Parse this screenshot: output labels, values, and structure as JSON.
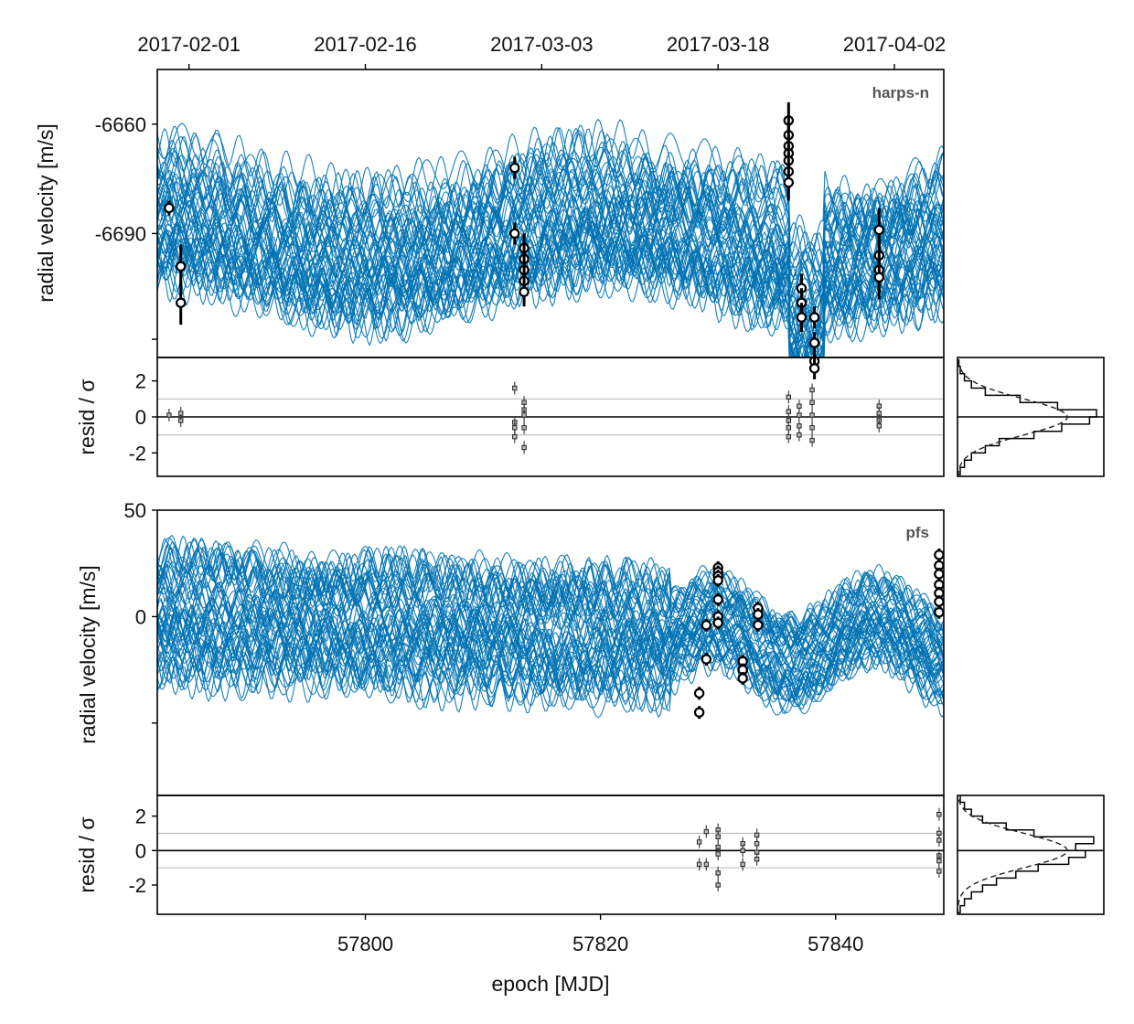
{
  "chart_data": {
    "type": "scatter",
    "colors": {
      "model": "#0072B2",
      "point_fill": "#ffffff",
      "point_edge": "#000000",
      "grid": "#bbbbbb",
      "instrument_label": "#555555"
    },
    "x_axis": {
      "label": "epoch [MJD]",
      "range": [
        57782.3,
        57849.2
      ],
      "ticks": [
        57800,
        57820,
        57840
      ],
      "tick_labels": [
        "57800",
        "57820",
        "57840"
      ]
    },
    "top_date_axis": {
      "range": [
        "2017-01-24",
        "2017-04-02"
      ],
      "tick_labels": [
        "2017-02-01",
        "2017-02-16",
        "2017-03-03",
        "2017-03-18",
        "2017-04-02"
      ],
      "tick_mjd": [
        57785,
        57800,
        57815,
        57830,
        57845
      ]
    },
    "panels": [
      {
        "instrument": "harps-n",
        "ylabel": "radial velocity [m/s]",
        "ylim": [
          -6724,
          -6645
        ],
        "yticks": [
          -6660,
          -6690,
          -6719
        ],
        "ytick_labels": [
          "-6660",
          "-6690",
          ""
        ],
        "points": [
          {
            "x": 57783.3,
            "y": -6683,
            "err": 2
          },
          {
            "x": 57784.3,
            "y": -6699,
            "err": 6
          },
          {
            "x": 57784.3,
            "y": -6709,
            "err": 6
          },
          {
            "x": 57812.7,
            "y": -6672,
            "err": 3
          },
          {
            "x": 57812.7,
            "y": -6690,
            "err": 3
          },
          {
            "x": 57813.5,
            "y": -6694,
            "err": 4
          },
          {
            "x": 57813.5,
            "y": -6697,
            "err": 4
          },
          {
            "x": 57813.5,
            "y": -6700,
            "err": 4
          },
          {
            "x": 57813.5,
            "y": -6703,
            "err": 4
          },
          {
            "x": 57813.5,
            "y": -6706,
            "err": 4
          },
          {
            "x": 57836.0,
            "y": -6659,
            "err": 5
          },
          {
            "x": 57836.0,
            "y": -6663,
            "err": 5
          },
          {
            "x": 57836.0,
            "y": -6666,
            "err": 5
          },
          {
            "x": 57836.0,
            "y": -6668,
            "err": 5
          },
          {
            "x": 57836.0,
            "y": -6670,
            "err": 5
          },
          {
            "x": 57836.0,
            "y": -6673,
            "err": 5
          },
          {
            "x": 57836.0,
            "y": -6676,
            "err": 5
          },
          {
            "x": 57837.1,
            "y": -6705,
            "err": 4
          },
          {
            "x": 57837.1,
            "y": -6709,
            "err": 4
          },
          {
            "x": 57837.1,
            "y": -6713,
            "err": 4
          },
          {
            "x": 57838.2,
            "y": -6713,
            "err": 3
          },
          {
            "x": 57838.2,
            "y": -6720,
            "err": 3
          },
          {
            "x": 57838.2,
            "y": -6725,
            "err": 3
          },
          {
            "x": 57838.2,
            "y": -6727,
            "err": 3
          },
          {
            "x": 57843.7,
            "y": -6689,
            "err": 6
          },
          {
            "x": 57843.7,
            "y": -6696,
            "err": 6
          },
          {
            "x": 57843.7,
            "y": -6700,
            "err": 6
          },
          {
            "x": 57843.7,
            "y": -6702,
            "err": 6
          }
        ],
        "residuals": {
          "ylabel": "resid / σ",
          "ylim": [
            -3.3,
            3.3
          ],
          "yticks": [
            2,
            0,
            -2
          ],
          "ytick_labels": [
            "2",
            "0",
            "-2"
          ],
          "hlines": [
            1,
            0,
            -1
          ],
          "points": [
            {
              "x": 57783.3,
              "y": 0.1
            },
            {
              "x": 57784.3,
              "y": -0.2
            },
            {
              "x": 57784.3,
              "y": 0.2
            },
            {
              "x": 57812.7,
              "y": 1.6
            },
            {
              "x": 57812.7,
              "y": -0.3
            },
            {
              "x": 57812.7,
              "y": -1.1
            },
            {
              "x": 57812.7,
              "y": -0.6
            },
            {
              "x": 57813.5,
              "y": 0.8
            },
            {
              "x": 57813.5,
              "y": 0.4
            },
            {
              "x": 57813.5,
              "y": 0.1
            },
            {
              "x": 57813.5,
              "y": -0.6
            },
            {
              "x": 57813.5,
              "y": -1.7
            },
            {
              "x": 57836.0,
              "y": 1.1
            },
            {
              "x": 57836.0,
              "y": 0.3
            },
            {
              "x": 57836.0,
              "y": -0.2
            },
            {
              "x": 57836.0,
              "y": -0.6
            },
            {
              "x": 57836.0,
              "y": -1.1
            },
            {
              "x": 57836.9,
              "y": 0.6
            },
            {
              "x": 57836.9,
              "y": 0.1
            },
            {
              "x": 57836.9,
              "y": -0.5
            },
            {
              "x": 57836.9,
              "y": -1.0
            },
            {
              "x": 57838.0,
              "y": 1.5
            },
            {
              "x": 57838.0,
              "y": 0.8
            },
            {
              "x": 57838.0,
              "y": 0.1
            },
            {
              "x": 57838.0,
              "y": -0.6
            },
            {
              "x": 57838.0,
              "y": -1.3
            },
            {
              "x": 57843.7,
              "y": 0.6
            },
            {
              "x": 57843.7,
              "y": 0.2
            },
            {
              "x": 57843.7,
              "y": -0.2
            },
            {
              "x": 57843.7,
              "y": -0.5
            }
          ],
          "histogram_bins": [
            -3.2,
            -2.8,
            -2.4,
            -2.0,
            -1.6,
            -1.2,
            -0.8,
            -0.4,
            0,
            0.4,
            0.8,
            1.2,
            1.6,
            2.0,
            2.4,
            2.8,
            3.2
          ],
          "histogram_values": [
            0.02,
            0.05,
            0.1,
            0.2,
            0.3,
            0.55,
            0.75,
            0.95,
            1.0,
            0.72,
            0.45,
            0.2,
            0.1,
            0.05,
            0.02,
            0.01
          ]
        }
      },
      {
        "instrument": "pfs",
        "ylabel": "radial velocity [m/s]",
        "ylim": [
          -84,
          50
        ],
        "yticks": [
          50,
          0,
          -50
        ],
        "ytick_labels": [
          "50",
          "0",
          ""
        ],
        "points": [
          {
            "x": 57828.4,
            "y": -36,
            "err": 3
          },
          {
            "x": 57828.4,
            "y": -45,
            "err": 3
          },
          {
            "x": 57829.0,
            "y": -4,
            "err": 3
          },
          {
            "x": 57829.0,
            "y": -20,
            "err": 3
          },
          {
            "x": 57830.0,
            "y": 23,
            "err": 3
          },
          {
            "x": 57830.0,
            "y": 21,
            "err": 3
          },
          {
            "x": 57830.0,
            "y": 19,
            "err": 3
          },
          {
            "x": 57830.0,
            "y": 17,
            "err": 3
          },
          {
            "x": 57830.0,
            "y": 8,
            "err": 3
          },
          {
            "x": 57830.0,
            "y": 0,
            "err": 3
          },
          {
            "x": 57830.0,
            "y": -3,
            "err": 3
          },
          {
            "x": 57832.1,
            "y": -21,
            "err": 3
          },
          {
            "x": 57832.1,
            "y": -25,
            "err": 3
          },
          {
            "x": 57832.1,
            "y": -29,
            "err": 3
          },
          {
            "x": 57833.4,
            "y": 4,
            "err": 3
          },
          {
            "x": 57833.4,
            "y": 1,
            "err": 3
          },
          {
            "x": 57833.4,
            "y": -4,
            "err": 3
          },
          {
            "x": 57848.8,
            "y": 29,
            "err": 3
          },
          {
            "x": 57848.8,
            "y": 24,
            "err": 3
          },
          {
            "x": 57848.8,
            "y": 20,
            "err": 3
          },
          {
            "x": 57848.8,
            "y": 15,
            "err": 3
          },
          {
            "x": 57848.8,
            "y": 11,
            "err": 3
          },
          {
            "x": 57848.8,
            "y": 7,
            "err": 3
          },
          {
            "x": 57848.8,
            "y": 2,
            "err": 3
          }
        ],
        "residuals": {
          "ylabel": "resid / σ",
          "ylim": [
            -3.7,
            3.2
          ],
          "yticks": [
            2,
            0,
            -2
          ],
          "ytick_labels": [
            "2",
            "0",
            "-2"
          ],
          "hlines": [
            1,
            0,
            -1
          ],
          "points": [
            {
              "x": 57828.4,
              "y": 0.5
            },
            {
              "x": 57828.4,
              "y": -0.8
            },
            {
              "x": 57829.0,
              "y": 1.1
            },
            {
              "x": 57829.0,
              "y": -0.8
            },
            {
              "x": 57830.0,
              "y": 1.2
            },
            {
              "x": 57830.0,
              "y": 0.8
            },
            {
              "x": 57830.0,
              "y": 0.2
            },
            {
              "x": 57830.0,
              "y": -0.2
            },
            {
              "x": 57830.0,
              "y": -1.3
            },
            {
              "x": 57830.0,
              "y": -2.0
            },
            {
              "x": 57832.1,
              "y": 0.4
            },
            {
              "x": 57832.1,
              "y": 0.0
            },
            {
              "x": 57832.1,
              "y": -0.8
            },
            {
              "x": 57833.3,
              "y": 0.9
            },
            {
              "x": 57833.3,
              "y": 0.4
            },
            {
              "x": 57833.3,
              "y": -0.1
            },
            {
              "x": 57833.3,
              "y": -0.5
            },
            {
              "x": 57848.8,
              "y": 2.1
            },
            {
              "x": 57848.8,
              "y": 1.0
            },
            {
              "x": 57848.8,
              "y": 0.6
            },
            {
              "x": 57848.8,
              "y": -0.3
            },
            {
              "x": 57848.8,
              "y": -0.6
            },
            {
              "x": 57848.8,
              "y": -1.2
            }
          ],
          "histogram_bins": [
            -3.6,
            -3.2,
            -2.8,
            -2.4,
            -2.0,
            -1.6,
            -1.2,
            -0.8,
            -0.4,
            0,
            0.4,
            0.8,
            1.2,
            1.6,
            2.0,
            2.4,
            2.8,
            3.2
          ],
          "histogram_values": [
            0.02,
            0.05,
            0.1,
            0.18,
            0.28,
            0.42,
            0.58,
            0.8,
            0.92,
            0.85,
            0.98,
            0.55,
            0.35,
            0.18,
            0.1,
            0.05,
            0.02
          ]
        }
      }
    ]
  }
}
